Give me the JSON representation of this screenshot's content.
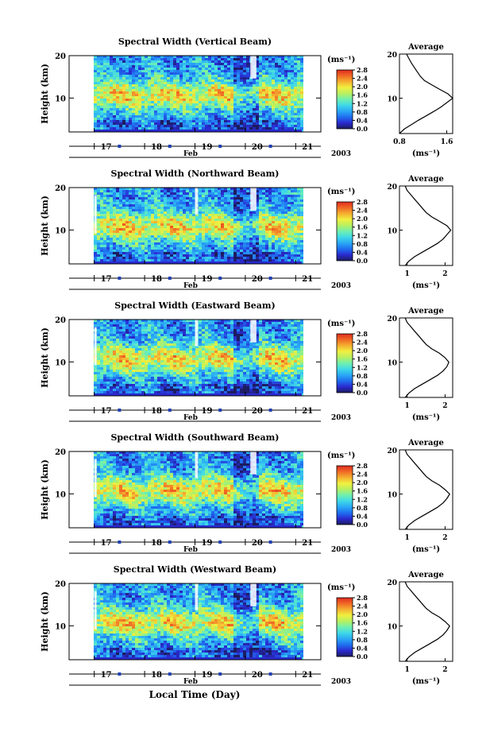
{
  "figure": {
    "xlabel_bottom": "Local Time (Day)",
    "month_label": "Feb",
    "year_label": "2003",
    "colorbar_units": "(ms⁻¹)",
    "average_title": "Average",
    "average_xlabel": "(ms⁻¹)"
  },
  "colors": {
    "scale": [
      "#1c1c5e",
      "#2a2ad0",
      "#1f6ff0",
      "#2aa8f5",
      "#3fd8e8",
      "#6ff0b0",
      "#b8f060",
      "#f0f040",
      "#f5b030",
      "#f06a25",
      "#e02a20"
    ]
  },
  "chart_data": [
    {
      "type": "heatmap",
      "title": "Spectral Width (Vertical Beam)",
      "ylabel": "Height (km)",
      "yticks": [
        "20",
        "10"
      ],
      "ylim": [
        2,
        20
      ],
      "xticks": [
        "17",
        "18",
        "19",
        "20",
        "21"
      ],
      "xlim": [
        16.5,
        21.5
      ],
      "colorbar": {
        "ticks": [
          "2.8",
          "2.4",
          "2.0",
          "1.6",
          "1.2",
          "0.8",
          "0.4",
          "0.0"
        ],
        "range": [
          0.0,
          2.8
        ]
      },
      "average": {
        "xticks": [
          "0.8",
          "1.6"
        ],
        "xlim": [
          0.8,
          1.7
        ],
        "yticks": [
          "20",
          "10"
        ],
        "height": [
          2,
          3,
          4,
          5,
          6,
          7,
          8,
          9,
          10,
          11,
          12,
          13,
          14,
          15,
          16,
          17,
          18,
          19,
          20
        ],
        "value": [
          0.8,
          0.88,
          1.0,
          1.12,
          1.25,
          1.38,
          1.5,
          1.6,
          1.7,
          1.62,
          1.48,
          1.35,
          1.22,
          1.15,
          1.1,
          1.05,
          1.0,
          0.96,
          0.92
        ]
      }
    },
    {
      "type": "heatmap",
      "title": "Spectral Width (Northward Beam)",
      "ylabel": "Height (km)",
      "yticks": [
        "20",
        "10"
      ],
      "ylim": [
        2,
        20
      ],
      "xticks": [
        "17",
        "18",
        "19",
        "20",
        "21"
      ],
      "xlim": [
        16.5,
        21.5
      ],
      "colorbar": {
        "ticks": [
          "2.8",
          "2.4",
          "2.0",
          "1.6",
          "1.2",
          "0.8",
          "0.4",
          "0.0"
        ],
        "range": [
          0.0,
          2.8
        ]
      },
      "average": {
        "xticks": [
          "1",
          "2"
        ],
        "xlim": [
          0.8,
          2.2
        ],
        "yticks": [
          "20",
          "10"
        ],
        "height": [
          2,
          3,
          4,
          5,
          6,
          7,
          8,
          9,
          10,
          11,
          12,
          13,
          14,
          15,
          16,
          17,
          18,
          19,
          20
        ],
        "value": [
          0.95,
          1.05,
          1.2,
          1.4,
          1.6,
          1.8,
          1.95,
          2.05,
          2.15,
          2.05,
          1.85,
          1.65,
          1.5,
          1.4,
          1.3,
          1.2,
          1.1,
          1.0,
          0.95
        ]
      }
    },
    {
      "type": "heatmap",
      "title": "Spectral Width (Eastward Beam)",
      "ylabel": "Height (km)",
      "yticks": [
        "20",
        "10"
      ],
      "ylim": [
        2,
        20
      ],
      "xticks": [
        "17",
        "18",
        "19",
        "20",
        "21"
      ],
      "xlim": [
        16.5,
        21.5
      ],
      "colorbar": {
        "ticks": [
          "2.8",
          "2.4",
          "2.0",
          "1.6",
          "1.2",
          "0.8",
          "0.4",
          "0.0"
        ],
        "range": [
          0.0,
          2.8
        ]
      },
      "average": {
        "xticks": [
          "1",
          "2"
        ],
        "xlim": [
          0.8,
          2.2
        ],
        "yticks": [
          "20",
          "10"
        ],
        "height": [
          2,
          3,
          4,
          5,
          6,
          7,
          8,
          9,
          10,
          11,
          12,
          13,
          14,
          15,
          16,
          17,
          18,
          19,
          20
        ],
        "value": [
          0.95,
          1.05,
          1.2,
          1.4,
          1.6,
          1.8,
          1.95,
          2.05,
          2.1,
          2.0,
          1.85,
          1.65,
          1.5,
          1.4,
          1.3,
          1.2,
          1.1,
          1.0,
          0.95
        ]
      }
    },
    {
      "type": "heatmap",
      "title": "Spectral Width (Southward Beam)",
      "ylabel": "Height (km)",
      "yticks": [
        "20",
        "10"
      ],
      "ylim": [
        2,
        20
      ],
      "xticks": [
        "17",
        "18",
        "19",
        "20",
        "21"
      ],
      "xlim": [
        16.5,
        21.5
      ],
      "colorbar": {
        "ticks": [
          "2.8",
          "2.4",
          "2.0",
          "1.6",
          "1.2",
          "0.8",
          "0.4",
          "0.0"
        ],
        "range": [
          0.0,
          2.8
        ]
      },
      "average": {
        "xticks": [
          "1",
          "2"
        ],
        "xlim": [
          0.8,
          2.2
        ],
        "yticks": [
          "20",
          "10"
        ],
        "height": [
          2,
          3,
          4,
          5,
          6,
          7,
          8,
          9,
          10,
          11,
          12,
          13,
          14,
          15,
          16,
          17,
          18,
          19,
          20
        ],
        "value": [
          0.95,
          1.05,
          1.2,
          1.4,
          1.6,
          1.8,
          1.95,
          2.05,
          2.12,
          2.0,
          1.85,
          1.65,
          1.5,
          1.4,
          1.3,
          1.2,
          1.1,
          1.0,
          0.95
        ]
      }
    },
    {
      "type": "heatmap",
      "title": "Spectral Width (Westward Beam)",
      "ylabel": "Height (km)",
      "yticks": [
        "20",
        "10"
      ],
      "ylim": [
        2,
        20
      ],
      "xticks": [
        "17",
        "18",
        "19",
        "20",
        "21"
      ],
      "xlim": [
        16.5,
        21.5
      ],
      "colorbar": {
        "ticks": [
          "2.8",
          "2.4",
          "2.0",
          "1.6",
          "1.2",
          "0.8",
          "0.4",
          "0.0"
        ],
        "range": [
          0.0,
          2.8
        ]
      },
      "average": {
        "xticks": [
          "1",
          "2"
        ],
        "xlim": [
          0.8,
          2.2
        ],
        "yticks": [
          "20",
          "10"
        ],
        "height": [
          2,
          3,
          4,
          5,
          6,
          7,
          8,
          9,
          10,
          11,
          12,
          13,
          14,
          15,
          16,
          17,
          18,
          19,
          20
        ],
        "value": [
          0.95,
          1.05,
          1.2,
          1.4,
          1.6,
          1.8,
          1.95,
          2.05,
          2.12,
          2.0,
          1.85,
          1.65,
          1.5,
          1.4,
          1.3,
          1.2,
          1.1,
          1.0,
          0.95
        ]
      }
    }
  ]
}
